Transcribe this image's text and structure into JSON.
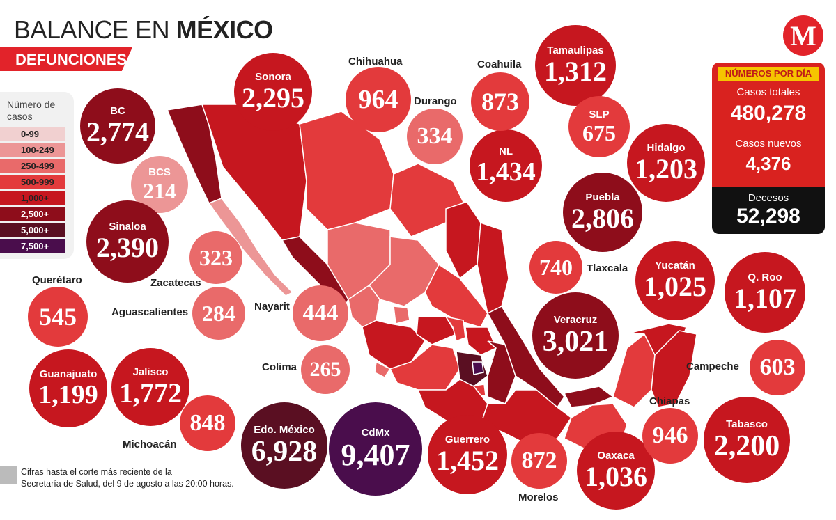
{
  "header": {
    "title_light": "BALANCE EN ",
    "title_bold": "MÉXICO",
    "subtitle": "DEFUNCIONES"
  },
  "logo": {
    "letter": "M"
  },
  "legend": {
    "title": "Número de casos",
    "items": [
      {
        "label": "0-99",
        "color": "#f1d0d0"
      },
      {
        "label": "100-249",
        "color": "#ec9696"
      },
      {
        "label": "250-499",
        "color": "#e96a6a"
      },
      {
        "label": "500-999",
        "color": "#e33a3c"
      },
      {
        "label": "1,000+",
        "color": "#c6171f"
      },
      {
        "label": "2,500+",
        "color": "#8e0d1b"
      },
      {
        "label": "5,000+",
        "color": "#5a0f22"
      },
      {
        "label": "7,500+",
        "color": "#4a0d4c"
      }
    ]
  },
  "stats": {
    "header": "NÚMEROS POR DÍA",
    "total_label": "Casos totales",
    "total_value": "480,278",
    "new_label": "Casos nuevos",
    "new_value": "4,376",
    "deaths_label": "Decesos",
    "deaths_value": "52,298"
  },
  "states": {
    "bc": {
      "name": "BC",
      "value": "2,774"
    },
    "sonora": {
      "name": "Sonora",
      "value": "2,295"
    },
    "chihuahua": {
      "name": "Chihuahua",
      "value": "964"
    },
    "durango": {
      "name": "Durango",
      "value": "334"
    },
    "coahuila": {
      "name": "Coahuila",
      "value": "873"
    },
    "tamaulipas": {
      "name": "Tamaulipas",
      "value": "1,312"
    },
    "nl": {
      "name": "NL",
      "value": "1,434"
    },
    "slp": {
      "name": "SLP",
      "value": "675"
    },
    "hidalgo": {
      "name": "Hidalgo",
      "value": "1,203"
    },
    "puebla": {
      "name": "Puebla",
      "value": "2,806"
    },
    "bcs": {
      "name": "BCS",
      "value": "214"
    },
    "sinaloa": {
      "name": "Sinaloa",
      "value": "2,390"
    },
    "zacatecas": {
      "name": "Zacatecas",
      "value": "323"
    },
    "aguascalientes": {
      "name": "Aguascalientes",
      "value": "284"
    },
    "nayarit": {
      "name": "Nayarit",
      "value": "444"
    },
    "queretaro": {
      "name": "Querétaro",
      "value": "545"
    },
    "tlaxcala": {
      "name": "Tlaxcala",
      "value": "740"
    },
    "yucatan": {
      "name": "Yucatán",
      "value": "1,025"
    },
    "qroo": {
      "name": "Q. Roo",
      "value": "1,107"
    },
    "veracruz": {
      "name": "Veracruz",
      "value": "3,021"
    },
    "guanajuato": {
      "name": "Guanajuato",
      "value": "1,199"
    },
    "jalisco": {
      "name": "Jalisco",
      "value": "1,772"
    },
    "colima": {
      "name": "Colima",
      "value": "265"
    },
    "campeche": {
      "name": "Campeche",
      "value": "603"
    },
    "michoacan": {
      "name": "Michoacán",
      "value": "848"
    },
    "edomex": {
      "name": "Edo. México",
      "value": "6,928"
    },
    "cdmx": {
      "name": "CdMx",
      "value": "9,407"
    },
    "guerrero": {
      "name": "Guerrero",
      "value": "1,452"
    },
    "morelos": {
      "name": "Morelos",
      "value": "872"
    },
    "oaxaca": {
      "name": "Oaxaca",
      "value": "1,036"
    },
    "chiapas": {
      "name": "Chiapas",
      "value": "946"
    },
    "tabasco": {
      "name": "Tabasco",
      "value": "2,200"
    }
  },
  "note": {
    "line1": "Cifras hasta el corte más reciente de la",
    "line2": "Secretaría de Salud, del 9 de agosto a las 20:00 horas."
  }
}
